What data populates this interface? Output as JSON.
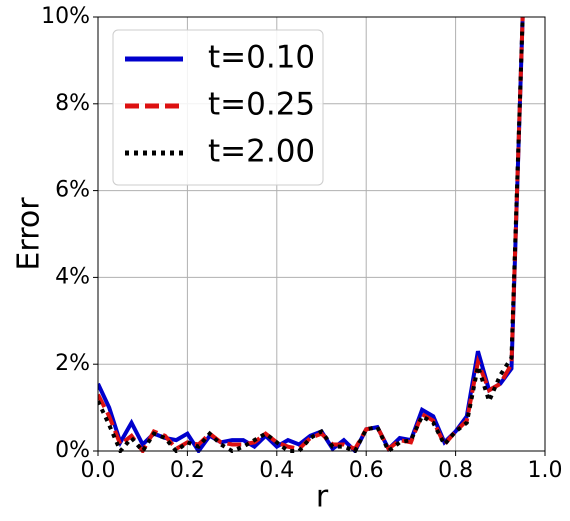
{
  "chart_data": {
    "type": "line",
    "xlabel": "r",
    "ylabel": "Error",
    "x": [
      0,
      0.025,
      0.05,
      0.075,
      0.1,
      0.125,
      0.15,
      0.175,
      0.2,
      0.225,
      0.25,
      0.275,
      0.3,
      0.325,
      0.35,
      0.375,
      0.4,
      0.425,
      0.45,
      0.475,
      0.5,
      0.525,
      0.55,
      0.575,
      0.6,
      0.625,
      0.65,
      0.675,
      0.7,
      0.725,
      0.75,
      0.775,
      0.8,
      0.825,
      0.85,
      0.875,
      0.9,
      0.925,
      0.95
    ],
    "series": [
      {
        "name": "t=0.10",
        "color": "#0000cc",
        "dash": "solid",
        "values": [
          1.55,
          1.0,
          0.2,
          0.65,
          0.15,
          0.4,
          0.3,
          0.25,
          0.4,
          0.0,
          0.35,
          0.2,
          0.25,
          0.25,
          0.1,
          0.35,
          0.1,
          0.25,
          0.15,
          0.35,
          0.45,
          0.05,
          0.25,
          0.0,
          0.5,
          0.55,
          0.05,
          0.3,
          0.25,
          0.95,
          0.8,
          0.2,
          0.45,
          0.8,
          2.3,
          1.4,
          1.55,
          1.9,
          10.0
        ]
      },
      {
        "name": "t=0.25",
        "color": "#dd1111",
        "dash": "dashed",
        "values": [
          1.3,
          0.8,
          0.15,
          0.35,
          0.0,
          0.45,
          0.35,
          0.05,
          0.2,
          0.15,
          0.4,
          0.2,
          0.15,
          0.15,
          0.2,
          0.4,
          0.2,
          0.1,
          0.05,
          0.3,
          0.4,
          0.15,
          0.15,
          0.05,
          0.5,
          0.55,
          0.05,
          0.25,
          0.2,
          0.85,
          0.7,
          0.15,
          0.45,
          0.7,
          2.05,
          1.4,
          1.55,
          2.0,
          10.0
        ]
      },
      {
        "name": "t=2.00",
        "color": "#000000",
        "dash": "dotted",
        "values": [
          1.15,
          0.6,
          0.0,
          0.3,
          0.0,
          0.4,
          0.3,
          0.0,
          0.2,
          0.1,
          0.4,
          0.15,
          0.0,
          0.1,
          0.25,
          0.4,
          0.2,
          0.0,
          0.0,
          0.3,
          0.45,
          0.1,
          0.1,
          0.0,
          0.5,
          0.55,
          0.0,
          0.2,
          0.25,
          0.8,
          0.65,
          0.15,
          0.45,
          0.65,
          1.95,
          1.15,
          1.75,
          2.15,
          10.0
        ]
      }
    ],
    "xlim": [
      0,
      1.0
    ],
    "xticks": [
      {
        "value": 0,
        "label": "0.0"
      },
      0.2,
      0.4,
      0.6,
      0.8,
      {
        "value": 1.0,
        "label": "1.0"
      }
    ],
    "ylim": [
      0,
      10
    ],
    "yticks": [
      {
        "value": 0,
        "label": "0%"
      },
      {
        "value": 2,
        "label": "2%"
      },
      {
        "value": 4,
        "label": "4%"
      },
      {
        "value": 6,
        "label": "6%"
      },
      {
        "value": 8,
        "label": "8%"
      },
      {
        "value": 10,
        "label": "10%"
      }
    ],
    "grid": true,
    "legend": "upper-left"
  }
}
